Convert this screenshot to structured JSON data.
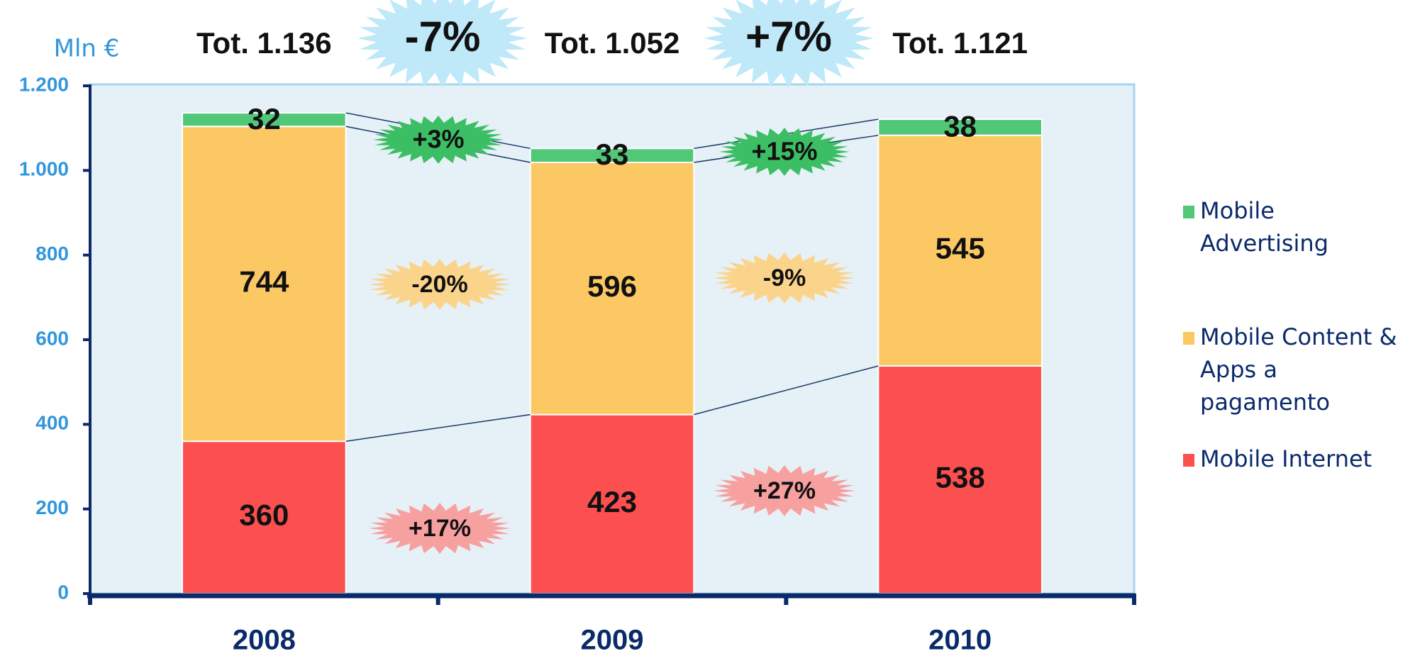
{
  "chart_data": {
    "type": "stacked_bar",
    "y_unit": "Mln €",
    "categories": [
      "2008",
      "2009",
      "2010"
    ],
    "series": [
      {
        "name": "Mobile Internet",
        "color": "#fc5050",
        "values": [
          360,
          423,
          538
        ]
      },
      {
        "name": "Mobile Content & Apps a pagamento",
        "color": "#fcc864",
        "values": [
          744,
          596,
          545
        ]
      },
      {
        "name": "Mobile Advertising",
        "color": "#50c878",
        "values": [
          32,
          33,
          38
        ]
      }
    ],
    "totals": [
      "Tot. 1.136",
      "Tot. 1.052",
      "Tot. 1.121"
    ],
    "annotations": [
      "-7%",
      "+7%",
      "+3%",
      "+15%",
      "-20%",
      "-9%",
      "+17%",
      "+27%"
    ],
    "ylim": [
      0,
      1200
    ],
    "yticks": [
      0,
      200,
      400,
      600,
      800,
      {
        "value": 1000,
        "label": "1.000"
      },
      {
        "value": 1200,
        "label": "1.200"
      }
    ],
    "legend": "right"
  }
}
